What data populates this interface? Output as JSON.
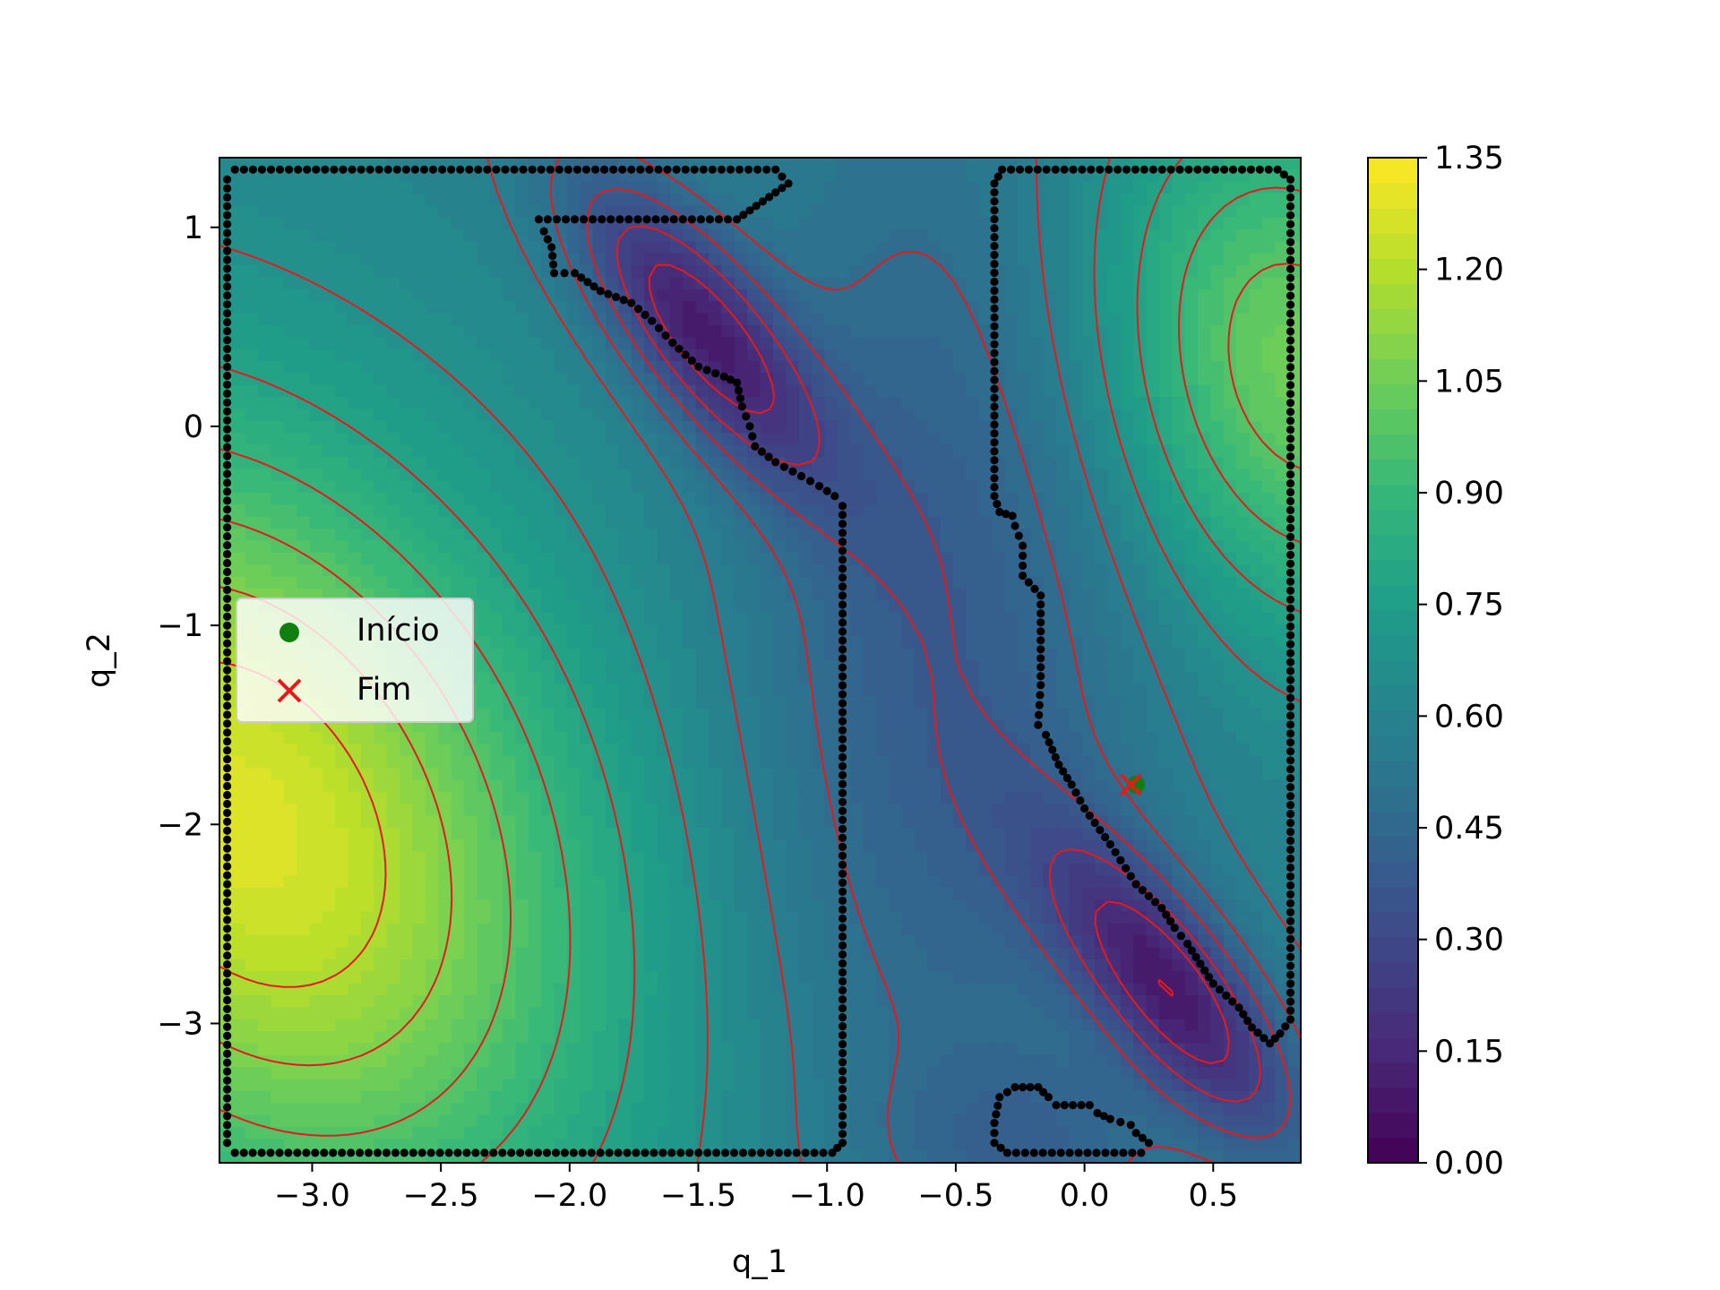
{
  "chart_data": {
    "type": "contour",
    "title": "",
    "xlabel": "q_1",
    "ylabel": "q_2",
    "xlim": [
      -3.36,
      0.84
    ],
    "ylim": [
      -3.7,
      1.35
    ],
    "x_ticks": [
      -3.0,
      -2.5,
      -2.0,
      -1.5,
      -1.0,
      -0.5,
      0.0,
      0.5
    ],
    "x_tick_labels": [
      "−3.0",
      "−2.5",
      "−2.0",
      "−1.5",
      "−1.0",
      "−0.5",
      "0.0",
      "0.5"
    ],
    "y_ticks": [
      -3,
      -2,
      -1,
      0,
      1
    ],
    "y_tick_labels": [
      "−3",
      "−2",
      "−1",
      "0",
      "1"
    ],
    "colorbar": {
      "range": [
        0.0,
        1.35
      ],
      "ticks": [
        0.0,
        0.15,
        0.3,
        0.45,
        0.6,
        0.75,
        0.9,
        1.05,
        1.2,
        1.35
      ],
      "tick_labels": [
        "0.00",
        "0.15",
        "0.30",
        "0.45",
        "0.60",
        "0.75",
        "0.90",
        "1.05",
        "1.20",
        "1.35"
      ],
      "colormap": "viridis"
    },
    "contour_line_color": "#e41a1c",
    "obstacle_point_color": "#000000",
    "legend": {
      "placement": "center-left",
      "entries": [
        {
          "label": "Início",
          "marker": "circle",
          "color": "#107f10"
        },
        {
          "label": "Fim",
          "marker": "x",
          "color": "#e41a1c"
        }
      ]
    },
    "markers": {
      "start": {
        "x": 0.2,
        "y": -1.8
      },
      "end": {
        "x": 0.18,
        "y": -1.8
      }
    },
    "obstacles": [
      [
        [
          -3.33,
          1.24
        ],
        [
          -3.3,
          1.29
        ],
        [
          -1.2,
          1.29
        ],
        [
          -1.15,
          1.22
        ],
        [
          -1.25,
          1.13
        ],
        [
          -1.35,
          1.04
        ],
        [
          -2.12,
          1.04
        ],
        [
          -2.1,
          0.98
        ],
        [
          -2.07,
          0.9
        ],
        [
          -2.06,
          0.77
        ],
        [
          -1.98,
          0.77
        ],
        [
          -1.88,
          0.68
        ],
        [
          -1.76,
          0.62
        ],
        [
          -1.68,
          0.53
        ],
        [
          -1.6,
          0.42
        ],
        [
          -1.5,
          0.3
        ],
        [
          -1.4,
          0.25
        ],
        [
          -1.35,
          0.22
        ],
        [
          -1.33,
          0.1
        ],
        [
          -1.3,
          0.0
        ],
        [
          -1.28,
          -0.1
        ],
        [
          -1.2,
          -0.18
        ],
        [
          -1.1,
          -0.25
        ],
        [
          -1.03,
          -0.3
        ],
        [
          -0.97,
          -0.35
        ],
        [
          -0.94,
          -0.4
        ],
        [
          -0.94,
          -3.6
        ],
        [
          -0.98,
          -3.65
        ],
        [
          -3.3,
          -3.65
        ],
        [
          -3.33,
          -3.6
        ]
      ],
      [
        [
          -0.35,
          1.22
        ],
        [
          -0.32,
          1.29
        ],
        [
          0.75,
          1.29
        ],
        [
          0.8,
          1.24
        ],
        [
          0.8,
          -2.98
        ],
        [
          0.76,
          -3.05
        ],
        [
          0.72,
          -3.1
        ],
        [
          0.65,
          -3.02
        ],
        [
          0.6,
          -2.92
        ],
        [
          0.5,
          -2.8
        ],
        [
          0.45,
          -2.7
        ],
        [
          0.4,
          -2.6
        ],
        [
          0.35,
          -2.52
        ],
        [
          0.3,
          -2.42
        ],
        [
          0.2,
          -2.3
        ],
        [
          0.1,
          -2.1
        ],
        [
          0.0,
          -1.92
        ],
        [
          -0.05,
          -1.8
        ],
        [
          -0.1,
          -1.7
        ],
        [
          -0.15,
          -1.55
        ],
        [
          -0.18,
          -1.5
        ],
        [
          -0.17,
          -1.3
        ],
        [
          -0.17,
          -0.85
        ],
        [
          -0.24,
          -0.75
        ],
        [
          -0.24,
          -0.6
        ],
        [
          -0.27,
          -0.5
        ],
        [
          -0.28,
          -0.45
        ],
        [
          -0.33,
          -0.43
        ],
        [
          -0.35,
          -0.35
        ]
      ],
      [
        [
          -0.35,
          -3.5
        ],
        [
          -0.33,
          -3.37
        ],
        [
          -0.27,
          -3.32
        ],
        [
          -0.18,
          -3.32
        ],
        [
          -0.14,
          -3.37
        ],
        [
          -0.11,
          -3.41
        ],
        [
          0.02,
          -3.41
        ],
        [
          0.05,
          -3.45
        ],
        [
          0.1,
          -3.48
        ],
        [
          0.18,
          -3.51
        ],
        [
          0.2,
          -3.55
        ],
        [
          0.25,
          -3.6
        ],
        [
          0.22,
          -3.65
        ],
        [
          -0.3,
          -3.65
        ],
        [
          -0.35,
          -3.6
        ]
      ]
    ]
  }
}
